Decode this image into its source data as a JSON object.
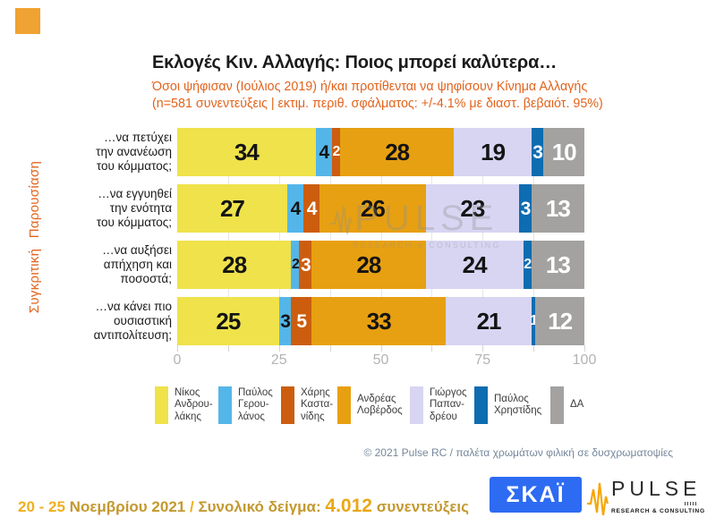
{
  "slide": {
    "title": "Εκλογές Κιν. Αλλαγής: Ποιος μπορεί καλύτερα…",
    "subtitle": "Όσοι ψήφισαν (Ιούλιος 2019) ή/και προτίθενται να ψηφίσουν Κίνημα Αλλαγής\n(n=581 συνεντεύξεις | εκτιμ. περιθ. σφάλματος: +/-4.1% με διαστ. βεβαιότ. 95%)",
    "side_label": "Συγκριτική Παρουσίαση"
  },
  "chart_data": {
    "type": "bar",
    "orientation": "horizontal-stacked",
    "xlim": [
      0,
      100
    ],
    "x_ticks": [
      0,
      25,
      50,
      75,
      100
    ],
    "minor_tick_step": 12.5,
    "grid": true,
    "categories": [
      "…να πετύχει\nτην ανανέωση\nτου κόμματος;",
      "…να εγγυηθεί\nτην ενότητα\nτου κόμματος;",
      "…να αυξήσει\nαπήχηση και\nποσοστά;",
      "…να κάνει πιο\nουσιαστική\nαντιπολίτευση;"
    ],
    "series": [
      {
        "name": "Νίκος Ανδρουλάκης",
        "legend_label": "Νίκος\nΑνδρου-\nλάκης",
        "color": "#efe24b",
        "text_color": "#141414",
        "values": [
          34,
          27,
          28,
          25
        ]
      },
      {
        "name": "Παύλος Γερουλάνος",
        "legend_label": "Παύλος\nΓερου-\nλάνος",
        "color": "#54b6e8",
        "text_color": "#141414",
        "values": [
          4,
          4,
          2,
          3
        ]
      },
      {
        "name": "Χάρης Καστανίδης",
        "legend_label": "Χάρης\nΚαστα-\nνίδης",
        "color": "#cc5d0e",
        "text_color": "#ffffff",
        "values": [
          2,
          4,
          3,
          5
        ]
      },
      {
        "name": "Ανδρέας Λοβέρδος",
        "legend_label": "Ανδρέας\nΛοβέρδος",
        "color": "#e7a011",
        "text_color": "#141414",
        "values": [
          28,
          26,
          28,
          33
        ]
      },
      {
        "name": "Γιώργος Παπανδρέου",
        "legend_label": "Γιώργος\nΠαπαν-\nδρέου",
        "color": "#d7d5f2",
        "text_color": "#141414",
        "values": [
          19,
          23,
          24,
          21
        ]
      },
      {
        "name": "Παύλος Χρηστίδης",
        "legend_label": "Παύλος\nΧρηστίδης",
        "color": "#0e6cb0",
        "text_color": "#ffffff",
        "values": [
          3,
          3,
          2,
          1
        ]
      },
      {
        "name": "ΔΑ",
        "legend_label": "ΔΑ",
        "color": "#a3a2a1",
        "text_color": "#ffffff",
        "values": [
          10,
          13,
          13,
          12
        ]
      }
    ]
  },
  "watermark": {
    "line1": "PULSE",
    "line2": "RESEARCH & CONSULTING"
  },
  "copyright": "© 2021 Pulse RC   /   παλέτα χρωμάτων φιλική σε δυσχρωματοψίες",
  "footer": {
    "date_range": "20 - 25",
    "date_month": "Νοεμβρίου 2021",
    "separator": "/",
    "sample_label": "Συνολικό δείγμα:",
    "sample_value": "4.012",
    "sample_unit": "συνεντεύξεις",
    "skai_logo_text": "ΣΚΑΪ",
    "pulse_logo_text": "PULSE",
    "pulse_logo_sub": "RESEARCH & CONSULTING"
  },
  "colors": {
    "accent_orange": "#e2631c",
    "corner_square": "#f0a232",
    "skai_blue": "#2d6bf2",
    "pulse_wave_orange": "#f6a60a",
    "footer_gold_bright": "#eeb01e",
    "footer_gold_dark": "#c3992f"
  }
}
